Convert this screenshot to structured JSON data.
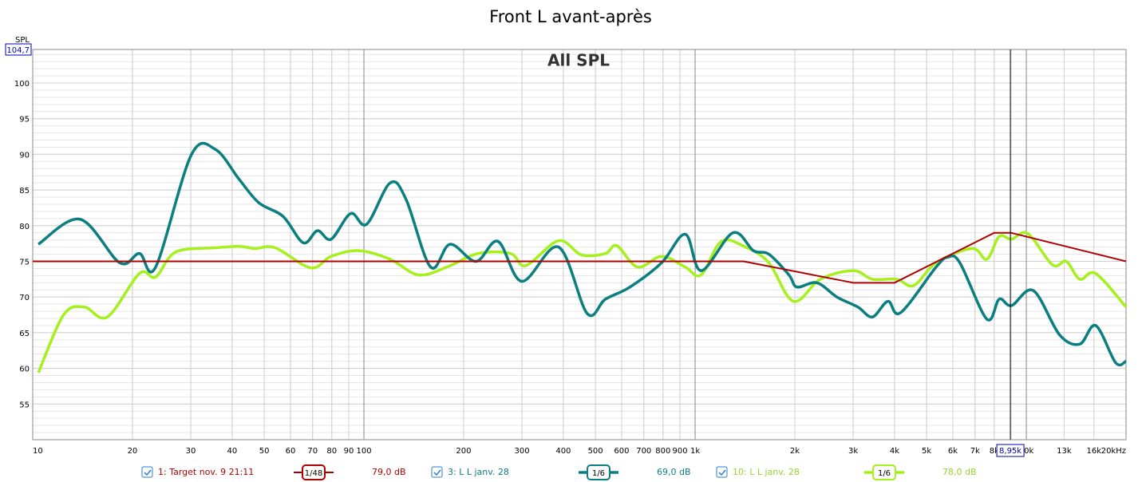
{
  "chart_data": {
    "type": "line",
    "title": "Front L avant-après",
    "y_label": "SPL",
    "annotation": "All SPL",
    "xscale": "log",
    "grid": true,
    "xlim": [
      10,
      20000
    ],
    "ylim": [
      50,
      104.7
    ],
    "xticks": [
      10,
      20,
      30,
      40,
      50,
      60,
      70,
      80,
      90,
      100,
      200,
      300,
      400,
      500,
      600,
      700,
      800,
      900,
      {
        "value": 1000,
        "label": "1k"
      },
      {
        "value": 2000,
        "label": "2k"
      },
      {
        "value": 3000,
        "label": "3k"
      },
      {
        "value": 4000,
        "label": "4k"
      },
      {
        "value": 5000,
        "label": "5k"
      },
      {
        "value": 6000,
        "label": "6k"
      },
      {
        "value": 7000,
        "label": "7k"
      },
      {
        "value": 8000,
        "label": "8k"
      },
      {
        "value": 10000,
        "label": "10k"
      },
      {
        "value": 13000,
        "label": "13k"
      },
      {
        "value": 16000,
        "label": "16k"
      },
      {
        "value": 20000,
        "label": "20kHz"
      }
    ],
    "yticks": [
      55,
      60,
      65,
      70,
      75,
      80,
      85,
      90,
      95,
      100,
      {
        "value": 104.7,
        "label": "104,7"
      }
    ],
    "cursor": {
      "value": 8950,
      "label": "8,95k"
    },
    "series": [
      {
        "name": "1: Target nov. 9 21:11",
        "smoothing": "1/48",
        "cursor_label": "79,0 dB",
        "color": "#b00000",
        "width": 2,
        "x": [
          10,
          1400,
          3000,
          4000,
          8000,
          9000,
          20000
        ],
        "values": [
          75,
          75,
          72,
          72,
          79,
          79,
          75
        ]
      },
      {
        "name": "3: L L janv. 28",
        "smoothing": "1/6",
        "cursor_label": "69,0 dB",
        "color": "#0b7f80",
        "width": 3.5,
        "x": [
          10.4,
          13.9,
          18.3,
          21,
          23.5,
          30.1,
          35.6,
          42,
          48.2,
          57,
          65.6,
          72.4,
          79.6,
          91.2,
          101.9,
          120,
          134,
          159,
          182,
          218,
          254,
          300,
          387,
          472,
          536,
          636,
          792,
          934,
          1043,
          1300,
          1500,
          1670,
          1920,
          2030,
          2330,
          2680,
          3100,
          3430,
          3820,
          4170,
          5340,
          5800,
          6300,
          7600,
          8280,
          9020,
          10500,
          12600,
          14500,
          16200,
          18600,
          20000
        ],
        "values": [
          77.4,
          80.9,
          74.8,
          76.1,
          74.2,
          89.9,
          90.7,
          86.5,
          83.2,
          81.3,
          77.6,
          79.3,
          78.1,
          81.7,
          80.2,
          86,
          83.7,
          74.2,
          77.4,
          75,
          77.8,
          72.2,
          77,
          67.7,
          69.7,
          71.4,
          74.8,
          78.8,
          73.7,
          79,
          76.5,
          76,
          73.1,
          71.4,
          72,
          70,
          68.6,
          67.2,
          69.4,
          67.8,
          74.2,
          75.6,
          74.8,
          66.9,
          69.7,
          68.8,
          70.9,
          64.7,
          63.4,
          66,
          60.8,
          61
        ]
      },
      {
        "name": "10: L L janv. 28",
        "smoothing": "1/6",
        "cursor_label": "78,0 dB",
        "color": "#a6f01e",
        "text_color": "#9ad42a",
        "width": 3.5,
        "x": [
          10.4,
          12.4,
          14.3,
          16.8,
          21,
          23.5,
          27,
          35.6,
          42,
          46.9,
          54,
          69.1,
          79.6,
          96.5,
          120,
          146,
          178,
          221,
          277,
          308,
          387,
          454,
          536,
          580,
          670,
          792,
          934,
          1043,
          1200,
          1420,
          1670,
          1980,
          2390,
          3000,
          3430,
          4060,
          4570,
          5340,
          6850,
          7600,
          8280,
          9020,
          10100,
          12000,
          13200,
          14500,
          16200,
          20000
        ],
        "values": [
          59.4,
          67.5,
          68.6,
          67.2,
          73.3,
          72.8,
          76.3,
          76.9,
          77.1,
          76.8,
          76.9,
          74.1,
          75.7,
          76.5,
          75.3,
          73.1,
          74.2,
          76.1,
          76.1,
          74.4,
          77.9,
          75.9,
          76.1,
          77.2,
          74.2,
          75.7,
          74.2,
          73.1,
          77.8,
          77,
          74.8,
          69.4,
          72.5,
          73.7,
          72.5,
          72.5,
          71.6,
          74.8,
          76.8,
          75.3,
          78.5,
          78.1,
          78.9,
          74.5,
          75,
          72.5,
          73.3,
          68.6
        ]
      }
    ]
  }
}
